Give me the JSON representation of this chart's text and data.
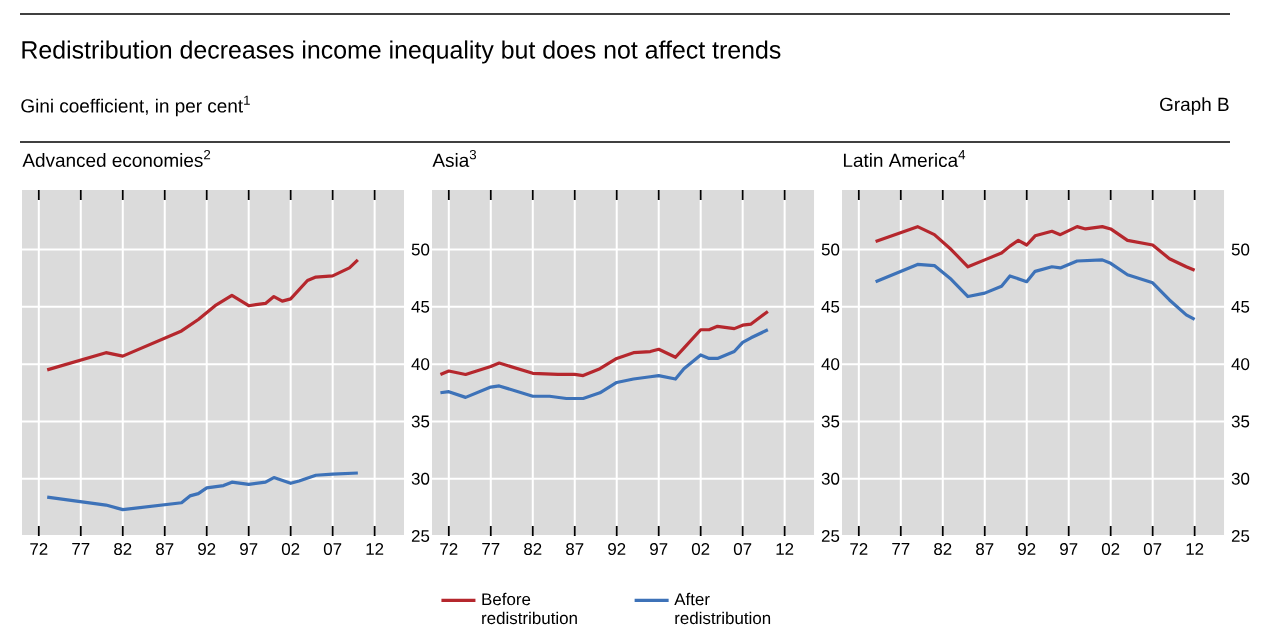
{
  "chart_data": [
    {
      "type": "other",
      "title": "Redistribution decreases income inequality but does not affect trends",
      "subtitle": "Gini coefficient, in per cent$^{1}$",
      "annotations": [
        "Graph B"
      ]
    },
    {
      "type": "line",
      "title": "Advanced economies$^{2}$",
      "xlim": [
        1970,
        2015.5
      ],
      "ylim": [
        25,
        55.2
      ],
      "grid": true,
      "xticks": [
        {
          "value": 1972,
          "label": "72"
        },
        {
          "value": 1977,
          "label": "77"
        },
        {
          "value": 1982,
          "label": "82"
        },
        {
          "value": 1987,
          "label": "87"
        },
        {
          "value": 1992,
          "label": "92"
        },
        {
          "value": 1997,
          "label": "97"
        },
        {
          "value": 2002,
          "label": "02"
        },
        {
          "value": 2007,
          "label": "07"
        },
        {
          "value": 2012,
          "label": "12"
        }
      ],
      "yticks": [
        25,
        30,
        35,
        40,
        45,
        50
      ],
      "series": [
        {
          "color": "#b5272d",
          "x": [
            1973,
            1980,
            1982,
            1989,
            1991,
            1993,
            1995,
            1997,
            1999,
            2000,
            2001,
            2002,
            2004,
            2005,
            2007,
            2009,
            2010
          ],
          "values": [
            39.5,
            41.0,
            40.7,
            42.9,
            43.9,
            45.1,
            46.0,
            45.1,
            45.3,
            45.9,
            45.5,
            45.7,
            47.3,
            47.6,
            47.7,
            48.4,
            49.1
          ]
        },
        {
          "color": "#3d72b8",
          "x": [
            1973,
            1980,
            1982,
            1989,
            1990,
            1991,
            1992,
            1994,
            1995,
            1997,
            1999,
            2000,
            2002,
            2003,
            2005,
            2007,
            2010
          ],
          "values": [
            28.4,
            27.7,
            27.3,
            27.9,
            28.5,
            28.7,
            29.2,
            29.4,
            29.7,
            29.5,
            29.7,
            30.1,
            29.6,
            29.8,
            30.3,
            30.4,
            30.5
          ]
        }
      ]
    },
    {
      "type": "line",
      "title": "Asia$^{3}$",
      "xlim": [
        1970,
        2015.5
      ],
      "ylim": [
        25,
        55.2
      ],
      "grid": true,
      "legend": "bottom",
      "xticks": [
        {
          "value": 1972,
          "label": "72"
        },
        {
          "value": 1977,
          "label": "77"
        },
        {
          "value": 1982,
          "label": "82"
        },
        {
          "value": 1987,
          "label": "87"
        },
        {
          "value": 1992,
          "label": "92"
        },
        {
          "value": 1997,
          "label": "97"
        },
        {
          "value": 2002,
          "label": "02"
        },
        {
          "value": 2007,
          "label": "07"
        },
        {
          "value": 2012,
          "label": "12"
        }
      ],
      "yticks": [
        25,
        30,
        35,
        40,
        45,
        50
      ],
      "series": [
        {
          "name": "Before redistribution",
          "color": "#b5272d",
          "x": [
            1971,
            1972,
            1974,
            1977,
            1978,
            1982,
            1985,
            1987,
            1988,
            1990,
            1992,
            1994,
            1996,
            1997,
            1999,
            2000,
            2002,
            2003,
            2004,
            2006,
            2007,
            2008,
            2010
          ],
          "values": [
            39.1,
            39.4,
            39.1,
            39.8,
            40.1,
            39.2,
            39.1,
            39.1,
            39.0,
            39.6,
            40.5,
            41.0,
            41.1,
            41.3,
            40.6,
            41.4,
            43.0,
            43.0,
            43.3,
            43.1,
            43.4,
            43.5,
            44.6
          ]
        },
        {
          "name": "After redistribution",
          "color": "#3d72b8",
          "x": [
            1971,
            1972,
            1974,
            1977,
            1978,
            1982,
            1984,
            1986,
            1988,
            1990,
            1992,
            1994,
            1996,
            1997,
            1999,
            2000,
            2002,
            2003,
            2004,
            2006,
            2007,
            2008,
            2010
          ],
          "values": [
            37.5,
            37.6,
            37.1,
            38.0,
            38.1,
            37.2,
            37.2,
            37.0,
            37.0,
            37.5,
            38.4,
            38.7,
            38.9,
            39.0,
            38.7,
            39.6,
            40.8,
            40.5,
            40.5,
            41.1,
            41.9,
            42.3,
            43.0
          ]
        }
      ]
    },
    {
      "type": "line",
      "title": "Latin America$^{4}$",
      "xlim": [
        1970,
        2015.5
      ],
      "ylim": [
        25,
        55.2
      ],
      "grid": true,
      "xticks": [
        {
          "value": 1972,
          "label": "72"
        },
        {
          "value": 1977,
          "label": "77"
        },
        {
          "value": 1982,
          "label": "82"
        },
        {
          "value": 1987,
          "label": "87"
        },
        {
          "value": 1992,
          "label": "92"
        },
        {
          "value": 1997,
          "label": "97"
        },
        {
          "value": 2002,
          "label": "02"
        },
        {
          "value": 2007,
          "label": "07"
        },
        {
          "value": 2012,
          "label": "12"
        }
      ],
      "yticks": [
        25,
        30,
        35,
        40,
        45,
        50
      ],
      "series": [
        {
          "color": "#b5272d",
          "x": [
            1974,
            1979,
            1981,
            1983,
            1985,
            1987,
            1989,
            1990,
            1991,
            1992,
            1993,
            1995,
            1996,
            1998,
            1999,
            2001,
            2002,
            2004,
            2007,
            2009,
            2011,
            2012
          ],
          "values": [
            50.7,
            52.0,
            51.3,
            50.0,
            48.5,
            49.1,
            49.7,
            50.3,
            50.8,
            50.4,
            51.2,
            51.6,
            51.3,
            52.0,
            51.8,
            52.0,
            51.8,
            50.8,
            50.4,
            49.2,
            48.5,
            48.2
          ]
        },
        {
          "color": "#3d72b8",
          "x": [
            1974,
            1979,
            1981,
            1983,
            1985,
            1987,
            1989,
            1990,
            1992,
            1993,
            1995,
            1996,
            1998,
            2001,
            2002,
            2004,
            2007,
            2009,
            2011,
            2012
          ],
          "values": [
            47.2,
            48.7,
            48.6,
            47.4,
            45.9,
            46.2,
            46.8,
            47.7,
            47.2,
            48.1,
            48.5,
            48.4,
            49.0,
            49.1,
            48.8,
            47.8,
            47.1,
            45.6,
            44.3,
            43.9
          ]
        }
      ]
    }
  ]
}
